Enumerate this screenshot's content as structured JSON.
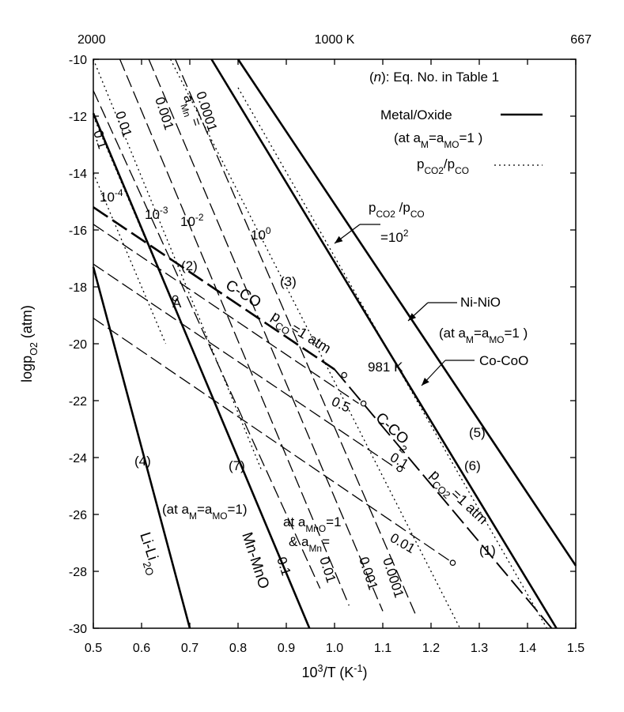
{
  "chart_data": {
    "type": "line",
    "xlabel": "10³/T (K⁻¹)",
    "ylabel": "log p_O₂ (atm)",
    "xlim": [
      0.5,
      1.5
    ],
    "ylim": [
      -30,
      -10
    ],
    "x_ticks": [
      "0.5",
      "0.6",
      "0.7",
      "0.8",
      "0.9",
      "1.0",
      "1.1",
      "1.2",
      "1.3",
      "1.4",
      "1.5"
    ],
    "y_ticks": [
      "-10",
      "-12",
      "-14",
      "-16",
      "-18",
      "-20",
      "-22",
      "-24",
      "-26",
      "-28",
      "-30"
    ],
    "top_axis_labels": [
      {
        "x": 0.5,
        "text": "2000"
      },
      {
        "x": 1.0,
        "text": "1000 K"
      },
      {
        "x": 1.5,
        "text": "667"
      }
    ],
    "legend": {
      "title": "(n): Eq. No. in Table 1",
      "entries": [
        {
          "label": "Metal/Oxide",
          "style": "solid"
        },
        {
          "label": "(at aM=aMO=1 )",
          "style": "none"
        },
        {
          "label": "pCO2/pCO",
          "style": "dotted"
        }
      ]
    },
    "series": [
      {
        "name": "Li-Li2O (4)",
        "style": "solid",
        "points": [
          [
            0.5,
            -17.3
          ],
          [
            0.7,
            -30.0
          ]
        ]
      },
      {
        "name": "Mn-MnO (7)",
        "style": "solid",
        "points": [
          [
            0.5,
            -11.9
          ],
          [
            0.948,
            -30.0
          ]
        ]
      },
      {
        "name": "Co-CoO (6)",
        "style": "solid",
        "points": [
          [
            0.745,
            -10.0
          ],
          [
            1.46,
            -30.0
          ]
        ]
      },
      {
        "name": "Ni-NiO (5)",
        "style": "solid",
        "points": [
          [
            0.8,
            -10.0
          ],
          [
            1.5,
            -27.8
          ]
        ]
      },
      {
        "name": "C-CO pCO=1 atm (2)",
        "style": "long-dash-bold",
        "points": [
          [
            0.5,
            -15.2
          ],
          [
            1.0,
            -20.9
          ]
        ]
      },
      {
        "name": "C-CO2 pCO2=1 atm (1)",
        "style": "long-dash",
        "points": [
          [
            1.0,
            -20.9
          ],
          [
            1.45,
            -30.0
          ]
        ]
      },
      {
        "name": "pCO=0.5",
        "style": "dashed",
        "points": [
          [
            0.5,
            -15.8
          ],
          [
            1.05,
            -22.1
          ]
        ]
      },
      {
        "name": "pCO=0.1",
        "style": "dashed",
        "points": [
          [
            0.5,
            -17.2
          ],
          [
            1.13,
            -24.4
          ]
        ]
      },
      {
        "name": "pCO=0.01",
        "style": "dashed",
        "points": [
          [
            0.5,
            -19.1
          ],
          [
            1.245,
            -27.7
          ]
        ]
      },
      {
        "name": "pCO2/pCO=1e-4",
        "style": "dotted",
        "points": [
          [
            0.5,
            -14.0
          ],
          [
            0.65,
            -20.0
          ]
        ]
      },
      {
        "name": "pCO2/pCO=1e-3",
        "style": "dotted",
        "points": [
          [
            0.5,
            -12.0
          ],
          [
            0.75,
            -22.0
          ]
        ]
      },
      {
        "name": "pCO2/pCO=1e-2",
        "style": "dotted",
        "points": [
          [
            0.5,
            -10.0
          ],
          [
            0.85,
            -24.5
          ]
        ]
      },
      {
        "name": "pCO2/pCO=1e0 (3)",
        "style": "dotted",
        "points": [
          [
            0.66,
            -10.0
          ],
          [
            1.26,
            -30.0
          ]
        ]
      },
      {
        "name": "pCO2/pCO=1e2",
        "style": "dotted",
        "points": [
          [
            0.8,
            -11.0
          ],
          [
            1.44,
            -30.0
          ]
        ]
      },
      {
        "name": "aMn=0.1",
        "style": "dashed",
        "points": [
          [
            0.5,
            -11.1
          ],
          [
            0.97,
            -28.6
          ]
        ]
      },
      {
        "name": "aMn=0.01",
        "style": "dashed",
        "points": [
          [
            0.555,
            -10.0
          ],
          [
            1.03,
            -29.2
          ]
        ]
      },
      {
        "name": "aMn=0.001",
        "style": "dashed",
        "points": [
          [
            0.615,
            -10.0
          ],
          [
            1.1,
            -29.4
          ]
        ]
      },
      {
        "name": "aMn=0.0001",
        "style": "dashed",
        "points": [
          [
            0.67,
            -10.0
          ],
          [
            1.17,
            -29.6
          ]
        ]
      }
    ],
    "points": [
      {
        "label": "A",
        "x": 0.67,
        "y": -18.4
      },
      {
        "label": "981 K",
        "x": 1.02,
        "y": -21.1
      },
      {
        "label": "",
        "x": 1.06,
        "y": -22.1
      },
      {
        "label": "",
        "x": 1.135,
        "y": -24.4
      },
      {
        "label": "",
        "x": 1.245,
        "y": -27.7
      }
    ],
    "annotations": [
      {
        "text": "aMn =",
        "kind": "amn-title"
      },
      {
        "text": "0.0001",
        "kind": "amn-top"
      },
      {
        "text": "0.001",
        "kind": "amn-top"
      },
      {
        "text": "0.01",
        "kind": "amn-top"
      },
      {
        "text": "0.1",
        "kind": "amn-top"
      },
      {
        "text": "10-4",
        "kind": "ratio"
      },
      {
        "text": "10-3",
        "kind": "ratio"
      },
      {
        "text": "10-2",
        "kind": "ratio"
      },
      {
        "text": "100",
        "kind": "ratio"
      },
      {
        "text": "(3)",
        "kind": "eq"
      },
      {
        "text": "(2)",
        "kind": "eq"
      },
      {
        "text": "A",
        "kind": "point"
      },
      {
        "text": "C-CO",
        "kind": "line"
      },
      {
        "text": "pCO=1 atm",
        "kind": "line"
      },
      {
        "text": "981 K",
        "kind": "point"
      },
      {
        "text": "0.5",
        "kind": "pco"
      },
      {
        "text": "0.1",
        "kind": "pco"
      },
      {
        "text": "0.01",
        "kind": "pco"
      },
      {
        "text": "C-CO2",
        "kind": "line"
      },
      {
        "text": "pCO2=1 atm",
        "kind": "line"
      },
      {
        "text": "(1)",
        "kind": "eq"
      },
      {
        "text": "(4)",
        "kind": "eq"
      },
      {
        "text": "(7)",
        "kind": "eq"
      },
      {
        "text": "(5)",
        "kind": "eq"
      },
      {
        "text": "(6)",
        "kind": "eq"
      },
      {
        "text": "Ni-NiO",
        "kind": "line"
      },
      {
        "text": "(at aM=aMO=1 )",
        "kind": "note"
      },
      {
        "text": "Co-CoO",
        "kind": "line"
      },
      {
        "text": "pCO2/pCO",
        "kind": "ratio-callout"
      },
      {
        "text": "=102",
        "kind": "ratio-callout"
      },
      {
        "text": "(at aM=aMO=1)",
        "kind": "note"
      },
      {
        "text": "at aMnO=1",
        "kind": "note"
      },
      {
        "text": "& aMn=",
        "kind": "note"
      },
      {
        "text": "0.1",
        "kind": "amn-bottom"
      },
      {
        "text": "0.01",
        "kind": "amn-bottom"
      },
      {
        "text": "0.001",
        "kind": "amn-bottom"
      },
      {
        "text": "0.0001",
        "kind": "amn-bottom"
      },
      {
        "text": "Li-Li2O",
        "kind": "line"
      },
      {
        "text": "Mn-MnO",
        "kind": "line"
      }
    ]
  }
}
